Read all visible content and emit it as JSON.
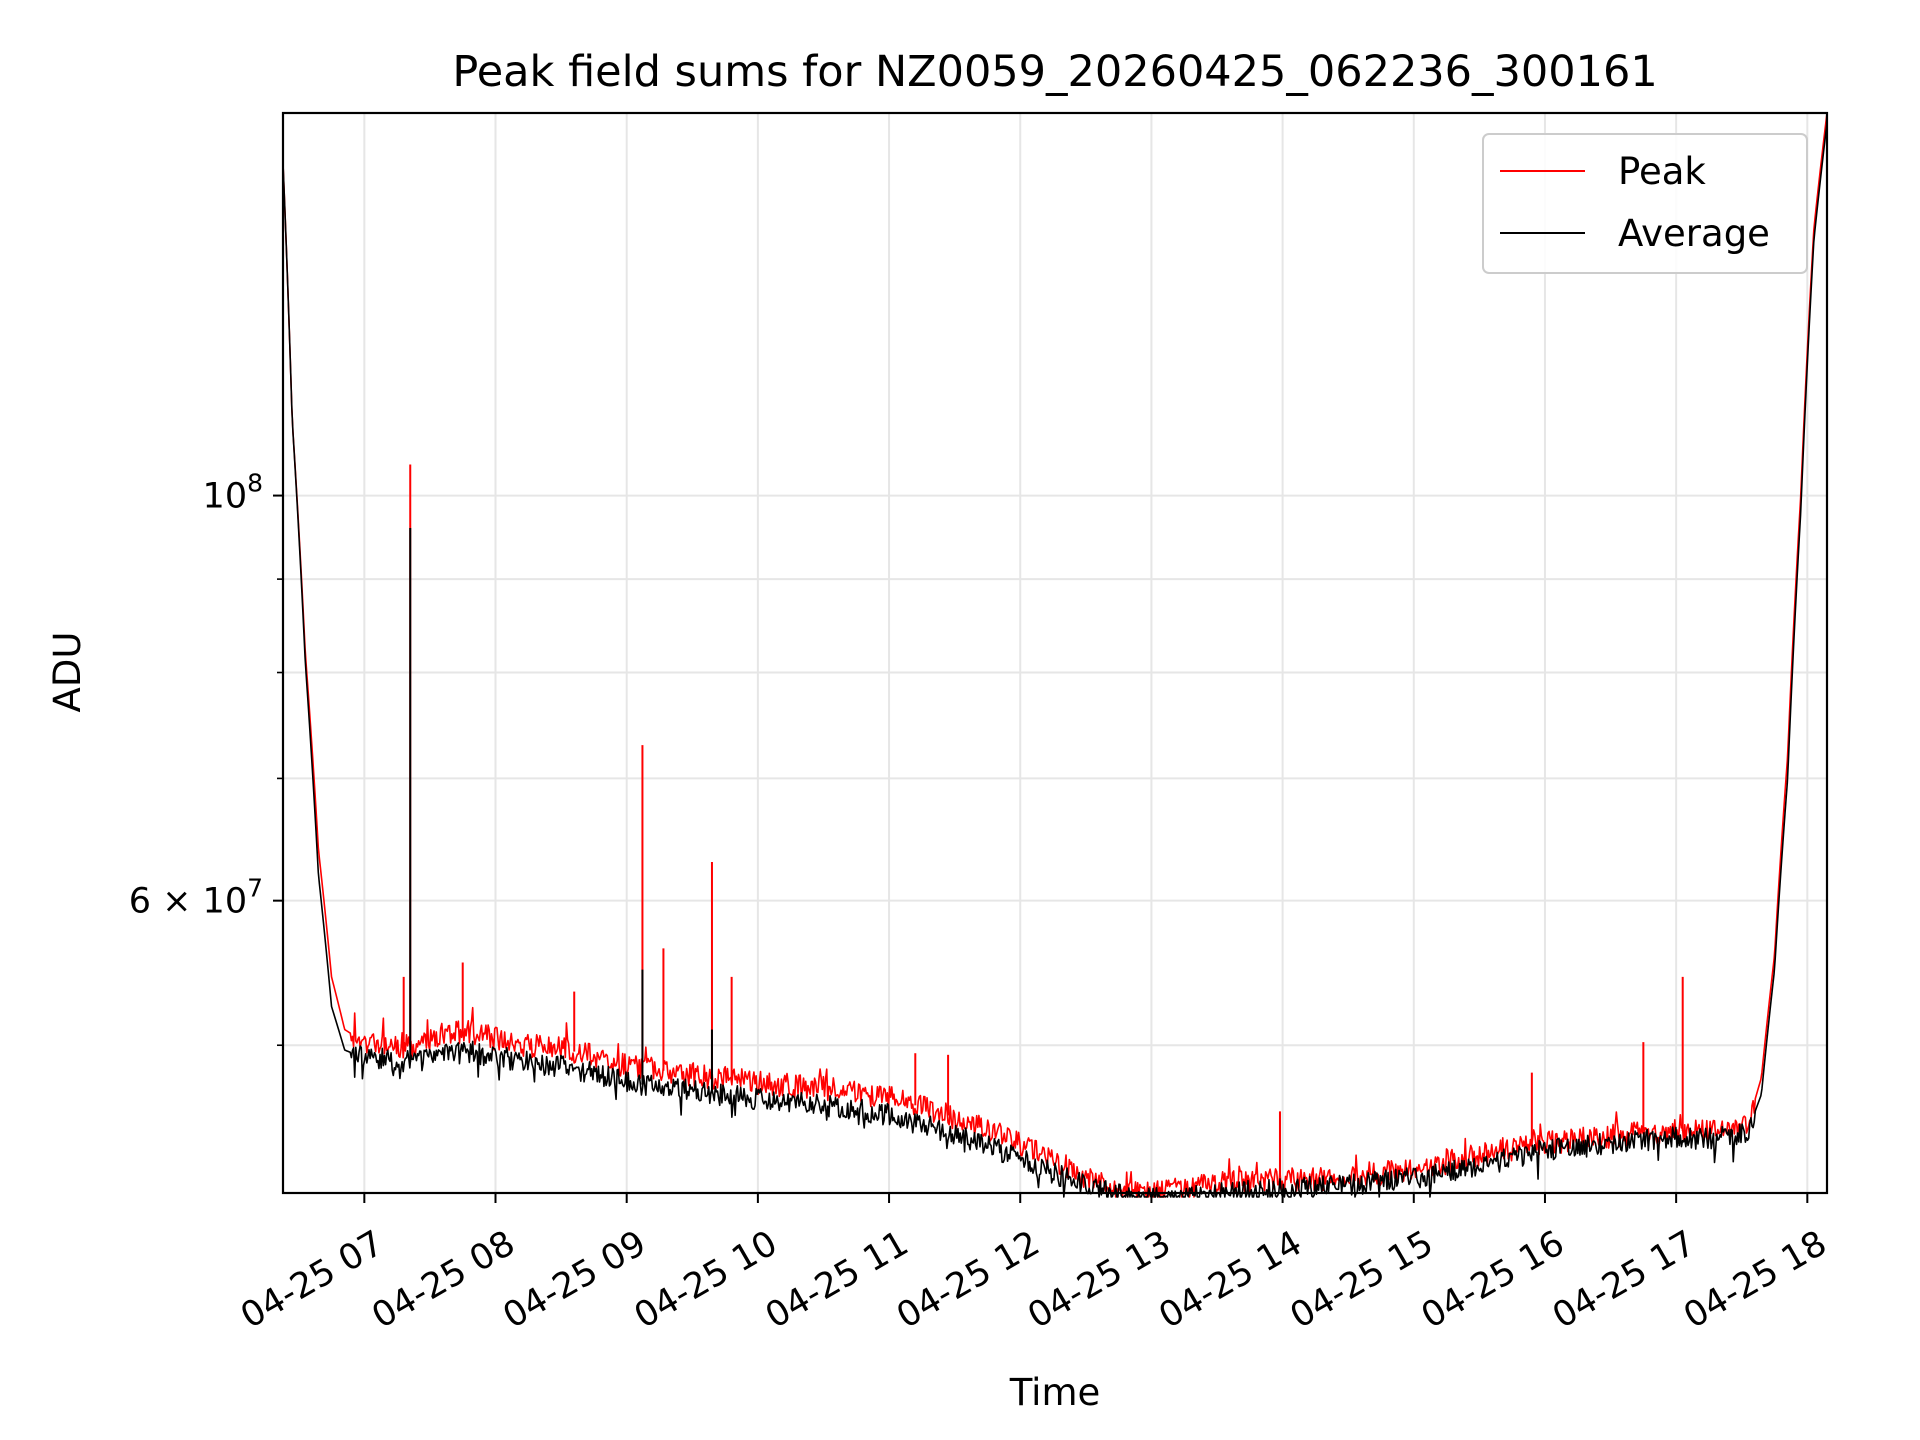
{
  "chart_data": {
    "type": "line",
    "title": "Peak field sums for NZ0059_20260425_062236_300161",
    "xlabel": "Time",
    "ylabel": "ADU",
    "yscale": "log",
    "ylim": [
      41500000,
      162000000
    ],
    "xlim_hours": [
      6.38,
      18.15
    ],
    "x_tick_labels": [
      "04-25 07",
      "04-25 08",
      "04-25 09",
      "04-25 10",
      "04-25 11",
      "04-25 12",
      "04-25 13",
      "04-25 14",
      "04-25 15",
      "04-25 16",
      "04-25 17",
      "04-25 18"
    ],
    "x_tick_hours": [
      7,
      8,
      9,
      10,
      11,
      12,
      13,
      14,
      15,
      16,
      17,
      18
    ],
    "y_major_ticks": [
      {
        "value": 60000000,
        "base": "6 × 10",
        "exp": "7"
      },
      {
        "value": 100000000,
        "base": "10",
        "exp": "8"
      }
    ],
    "y_minor_tick_values": [
      50000000,
      70000000,
      80000000,
      90000000,
      200000000
    ],
    "grid": true,
    "legend": {
      "position": "top-right",
      "entries": [
        "Peak",
        "Average"
      ]
    },
    "colors": {
      "peak": "#ff0000",
      "average": "#000000",
      "grid": "#e6e6e6"
    },
    "series": [
      {
        "name": "Peak",
        "color": "#ff0000",
        "x": [
          6.38,
          6.45,
          6.55,
          6.65,
          6.75,
          6.85,
          7.0,
          7.2,
          7.4,
          7.6,
          7.8,
          8.0,
          8.2,
          8.5,
          8.8,
          9.0,
          9.2,
          9.5,
          9.8,
          10.0,
          10.3,
          10.6,
          11.0,
          11.4,
          11.8,
          12.2,
          12.5,
          12.8,
          13.0,
          13.2,
          13.5,
          14.0,
          14.5,
          15.0,
          15.3,
          15.6,
          16.0,
          16.4,
          16.8,
          17.0,
          17.3,
          17.55,
          17.65,
          17.75,
          17.85,
          17.95,
          18.05,
          18.15
        ],
        "y": [
          152000000,
          110000000,
          82000000,
          64000000,
          54500000,
          51000000,
          50200000,
          50100000,
          49800000,
          50700000,
          50900000,
          50400000,
          50000000,
          49800000,
          49200000,
          48700000,
          48500000,
          48200000,
          47900000,
          47700000,
          47500000,
          47300000,
          46800000,
          45900000,
          44800000,
          43500000,
          42300000,
          41500000,
          41500000,
          41700000,
          42000000,
          42200000,
          42300000,
          42800000,
          43200000,
          43700000,
          44200000,
          44500000,
          44800000,
          44900000,
          44800000,
          45300000,
          48000000,
          56000000,
          72000000,
          100000000,
          140000000,
          162000000
        ],
        "spikes": [
          {
            "x": 7.35,
            "y": 104000000
          },
          {
            "x": 7.3,
            "y": 54500000
          },
          {
            "x": 7.75,
            "y": 55500000
          },
          {
            "x": 8.6,
            "y": 53500000
          },
          {
            "x": 9.12,
            "y": 73000000
          },
          {
            "x": 9.28,
            "y": 56500000
          },
          {
            "x": 9.65,
            "y": 63000000
          },
          {
            "x": 9.8,
            "y": 54500000
          },
          {
            "x": 11.2,
            "y": 49500000
          },
          {
            "x": 11.45,
            "y": 49400000
          },
          {
            "x": 13.98,
            "y": 46000000
          },
          {
            "x": 15.9,
            "y": 48300000
          },
          {
            "x": 16.75,
            "y": 50200000
          },
          {
            "x": 17.05,
            "y": 54500000
          }
        ]
      },
      {
        "name": "Average",
        "color": "#000000",
        "x": [
          6.38,
          6.45,
          6.55,
          6.65,
          6.75,
          6.85,
          7.0,
          7.2,
          7.4,
          7.6,
          7.8,
          8.0,
          8.2,
          8.5,
          8.8,
          9.0,
          9.2,
          9.5,
          9.8,
          10.0,
          10.3,
          10.6,
          11.0,
          11.4,
          11.8,
          12.2,
          12.5,
          12.8,
          13.0,
          13.2,
          13.5,
          14.0,
          14.5,
          15.0,
          15.3,
          15.6,
          16.0,
          16.4,
          16.8,
          17.0,
          17.3,
          17.55,
          17.65,
          17.75,
          17.85,
          17.95,
          18.05,
          18.15
        ],
        "y": [
          152000000,
          110000000,
          81000000,
          62000000,
          52500000,
          49700000,
          49200000,
          49100000,
          48900000,
          49400000,
          49600000,
          49300000,
          49000000,
          48700000,
          48200000,
          47700000,
          47500000,
          47200000,
          46900000,
          46700000,
          46500000,
          46300000,
          45800000,
          44900000,
          43900000,
          42700000,
          41900000,
          41300000,
          41200000,
          41300000,
          41500000,
          41700000,
          41900000,
          42300000,
          42700000,
          43200000,
          43800000,
          44100000,
          44400000,
          44500000,
          44400000,
          44900000,
          47000000,
          55000000,
          70000000,
          98000000,
          138000000,
          160000000
        ],
        "spikes": [
          {
            "x": 7.35,
            "y": 96000000
          },
          {
            "x": 9.12,
            "y": 55000000
          },
          {
            "x": 9.65,
            "y": 51000000
          }
        ]
      }
    ]
  }
}
